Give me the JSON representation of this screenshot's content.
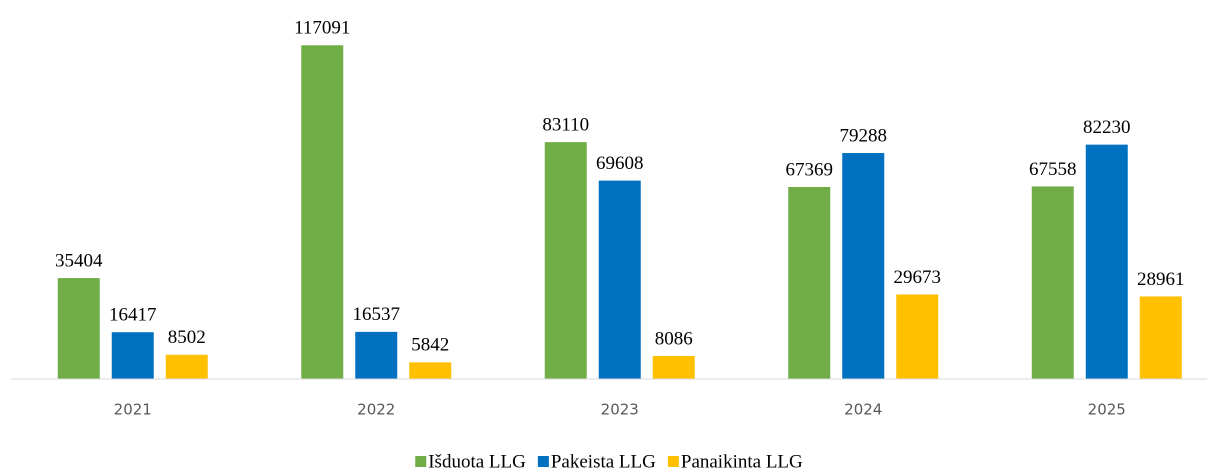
{
  "chart_data": {
    "type": "bar",
    "categories": [
      "2021",
      "2022",
      "2023",
      "2024",
      "2025"
    ],
    "series": [
      {
        "name": "Išduota LLG",
        "color": "#70ad47",
        "values": [
          35404,
          117091,
          83110,
          67369,
          67558
        ]
      },
      {
        "name": "Pakeista LLG",
        "color": "#0070c0",
        "values": [
          16417,
          16537,
          69608,
          79288,
          82230
        ]
      },
      {
        "name": "Panaikinta LLG",
        "color": "#ffc000",
        "values": [
          8502,
          5842,
          8086,
          29673,
          28961
        ]
      }
    ],
    "ylim": [
      0,
      120000
    ],
    "legend": "bottom"
  }
}
